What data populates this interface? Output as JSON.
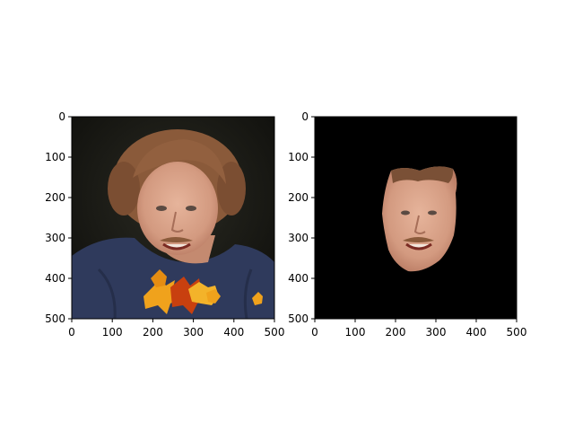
{
  "chart_data": [
    {
      "type": "image",
      "title": "",
      "xlabel": "",
      "ylabel": "",
      "xlim": [
        0,
        500
      ],
      "ylim": [
        500,
        0
      ],
      "xticks": [
        0,
        100,
        200,
        300,
        400,
        500
      ],
      "yticks": [
        0,
        100,
        200,
        300,
        400,
        500
      ],
      "grid": false,
      "content": "portrait photo of a man with autumn leaves overlaid near the bottom",
      "colors": {
        "background": "#1a1a14",
        "sweater": "#2f3a5c",
        "hair": "#8a5a3a",
        "skin": "#d9a58c",
        "leaf": "#f0a21c",
        "leaf_dark": "#c8400f"
      }
    },
    {
      "type": "image",
      "title": "",
      "xlabel": "",
      "ylabel": "",
      "xlim": [
        0,
        500
      ],
      "ylim": [
        500,
        0
      ],
      "xticks": [
        0,
        100,
        200,
        300,
        400,
        500
      ],
      "yticks": [
        0,
        100,
        200,
        300,
        400,
        500
      ],
      "grid": false,
      "content": "face region segmented on a black background",
      "colors": {
        "background": "#000000",
        "skin": "#dca590",
        "hair": "#7a5036"
      }
    }
  ]
}
